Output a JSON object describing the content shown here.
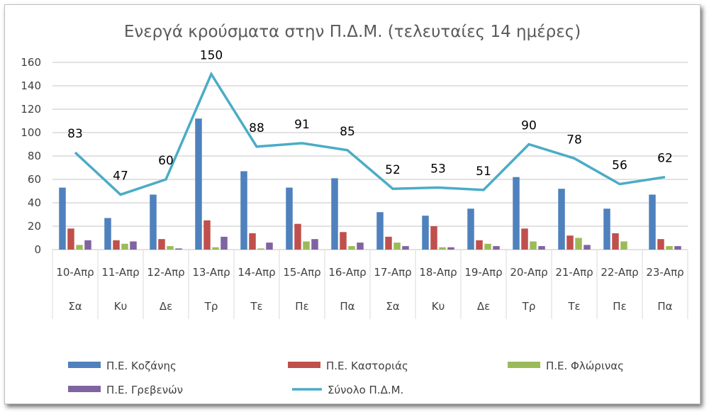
{
  "chart_data": {
    "type": "bar",
    "title": "Ενεργά κρούσματα στην Π.Δ.Μ. (τελευταίες 14 ημέρες)",
    "categories": [
      "10-Απρ",
      "11-Απρ",
      "12-Απρ",
      "13-Απρ",
      "14-Απρ",
      "15-Απρ",
      "16-Απρ",
      "17-Απρ",
      "18-Απρ",
      "19-Απρ",
      "20-Απρ",
      "21-Απρ",
      "22-Απρ",
      "23-Απρ"
    ],
    "days": [
      "Σα",
      "Κυ",
      "Δε",
      "Τρ",
      "Τε",
      "Πε",
      "Πα",
      "Σα",
      "Κυ",
      "Δε",
      "Τρ",
      "Τε",
      "Πε",
      "Πα"
    ],
    "ylim": [
      0,
      160
    ],
    "yticks": [
      0,
      20,
      40,
      60,
      80,
      100,
      120,
      140,
      160
    ],
    "grid": true,
    "legend_position": "bottom",
    "series": [
      {
        "name": "Π.Ε. Κοζάνης",
        "type": "bar",
        "color": "#4f81bd",
        "values": [
          53,
          27,
          47,
          112,
          67,
          53,
          61,
          32,
          29,
          35,
          62,
          52,
          35,
          47
        ]
      },
      {
        "name": "Π.Ε. Καστοριάς",
        "type": "bar",
        "color": "#c0504d",
        "values": [
          18,
          8,
          9,
          25,
          14,
          22,
          15,
          11,
          20,
          8,
          18,
          12,
          14,
          9
        ]
      },
      {
        "name": "Π.Ε. Φλώρινας",
        "type": "bar",
        "color": "#9bbb59",
        "values": [
          4,
          5,
          3,
          2,
          1,
          7,
          3,
          6,
          2,
          5,
          7,
          10,
          7,
          3
        ]
      },
      {
        "name": "Π.Ε. Γρεβενών",
        "type": "bar",
        "color": "#8064a2",
        "values": [
          8,
          7,
          1,
          11,
          6,
          9,
          6,
          3,
          2,
          3,
          3,
          4,
          0,
          3
        ]
      },
      {
        "name": "Σύνολο Π.Δ.Μ.",
        "type": "line",
        "color": "#4bacc6",
        "values": [
          83,
          47,
          60,
          150,
          88,
          91,
          85,
          52,
          53,
          51,
          90,
          78,
          56,
          62
        ]
      }
    ]
  }
}
